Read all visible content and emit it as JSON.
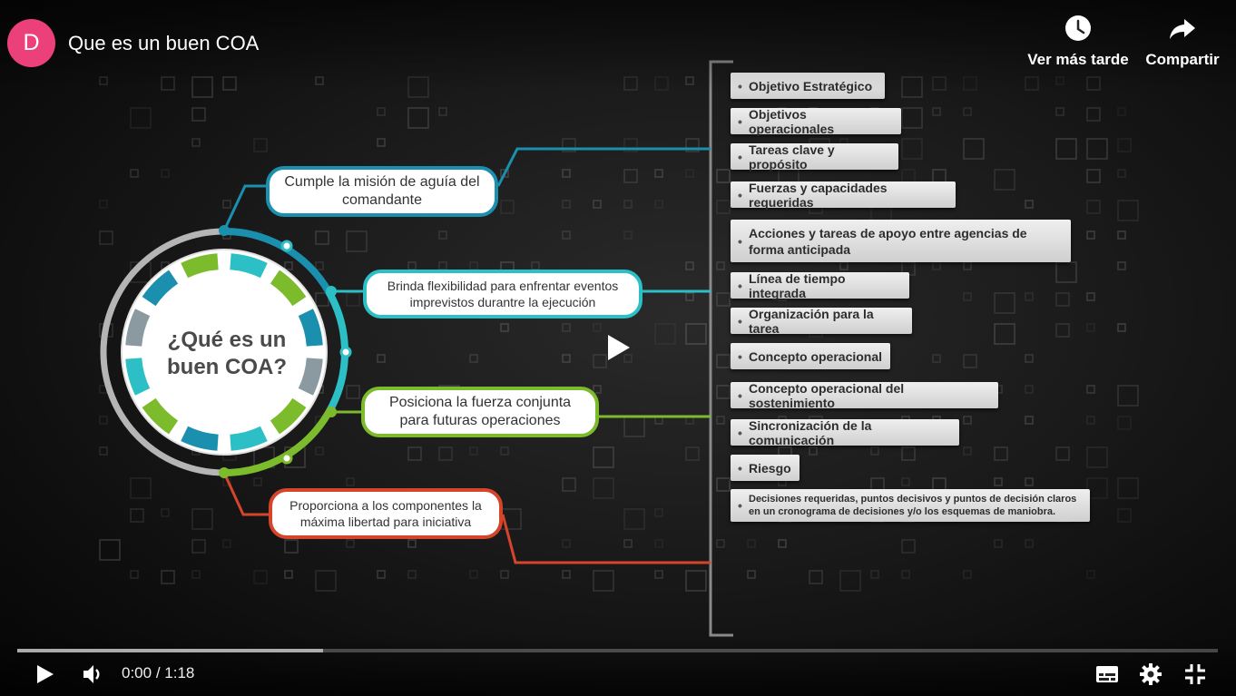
{
  "header": {
    "channel_initial": "D",
    "title": "Que es un buen COA",
    "watch_later_label": "Ver más tarde",
    "share_label": "Compartir",
    "accent_color": "#ec407a"
  },
  "slide": {
    "center_title_line1": "¿Qué es un",
    "center_title_line2": "buen COA?",
    "branches": [
      {
        "line1": "Cumple la misión de aguía del",
        "line2": "comandante",
        "color": "#1b8fae"
      },
      {
        "line1": "Brinda flexibilidad para enfrentar eventos",
        "line2": "imprevistos durantre la ejecución",
        "color": "#2cc0c6"
      },
      {
        "line1": "Posiciona la fuerza conjunta",
        "line2": "para futuras operaciones",
        "color": "#7cbb2c"
      },
      {
        "line1": "Proporciona a los componentes la",
        "line2": "máxima libertad para iniciativa",
        "color": "#d4452a"
      }
    ],
    "items": [
      "Objetivo Estratégico",
      "Objetivos operacionales",
      "Tareas clave y propósito",
      "Fuerzas y capacidades requeridas",
      "Acciones y tareas de apoyo entre agencias de forma anticipada",
      "Línea de tiempo integrada",
      "Organización para la tarea",
      "Concepto operacional",
      "Concepto operacional del sostenimiento",
      "Sincronización de la comunicación",
      "Riesgo",
      "Decisiones requeridas, puntos decisivos y puntos de decisión claros en un cronograma de decisiones y/o los esquemas de maniobra."
    ]
  },
  "controls": {
    "current_time": "0:00",
    "separator": " / ",
    "duration": "1:18",
    "loaded_fraction": 0.255,
    "icons": [
      "play-icon",
      "volume-icon",
      "subtitles-icon",
      "settings-icon",
      "exit-fullscreen-icon"
    ]
  }
}
